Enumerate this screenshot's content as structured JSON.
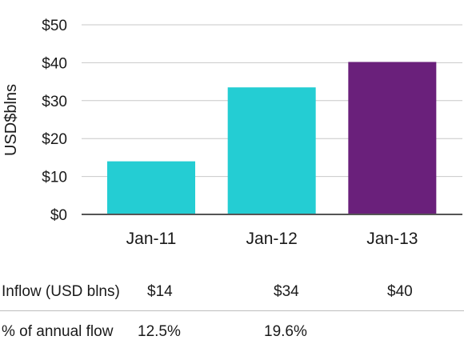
{
  "chart_data": {
    "type": "bar",
    "categories": [
      "Jan-11",
      "Jan-12",
      "Jan-13"
    ],
    "values": [
      14,
      33.5,
      40.2
    ],
    "colors": [
      "#24cdd3",
      "#24cdd3",
      "#6a207b"
    ],
    "ylabel": "USD$blns",
    "ylim": [
      0,
      50
    ],
    "yticks": [
      0,
      10,
      20,
      30,
      40,
      50
    ],
    "ytick_labels": [
      "$0",
      "$10",
      "$20",
      "$30",
      "$40",
      "$50"
    ],
    "grid": true
  },
  "table": {
    "rows": [
      {
        "label": "Inflow (USD blns)",
        "cells": [
          "$14",
          "$34",
          "$40"
        ]
      },
      {
        "label": "% of annual flow",
        "cells": [
          "12.5%",
          "19.6%",
          ""
        ]
      }
    ]
  }
}
